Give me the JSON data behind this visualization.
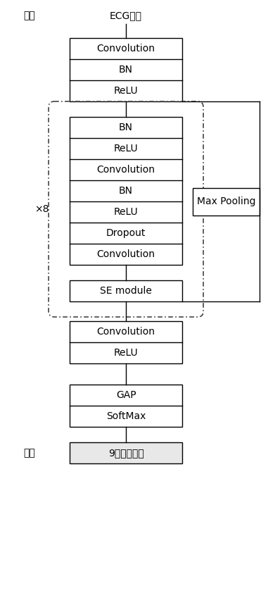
{
  "background_color": "#ffffff",
  "input_label": "输入",
  "input_signal": "ECG信号",
  "output_label": "输出",
  "output_signal": "9种心律失常",
  "repeat_label": "×8",
  "max_pooling_label": "Max Pooling",
  "top_blocks": [
    "Convolution",
    "BN",
    "ReLU"
  ],
  "repeat_blocks": [
    "BN",
    "ReLU",
    "Convolution",
    "BN",
    "ReLU",
    "Dropout",
    "Convolution"
  ],
  "se_block": "SE module",
  "bottom_blocks": [
    "Convolution",
    "ReLU"
  ],
  "final_blocks": [
    "GAP",
    "SoftMax"
  ],
  "fig_width": 3.81,
  "fig_height": 8.59,
  "dpi": 100
}
